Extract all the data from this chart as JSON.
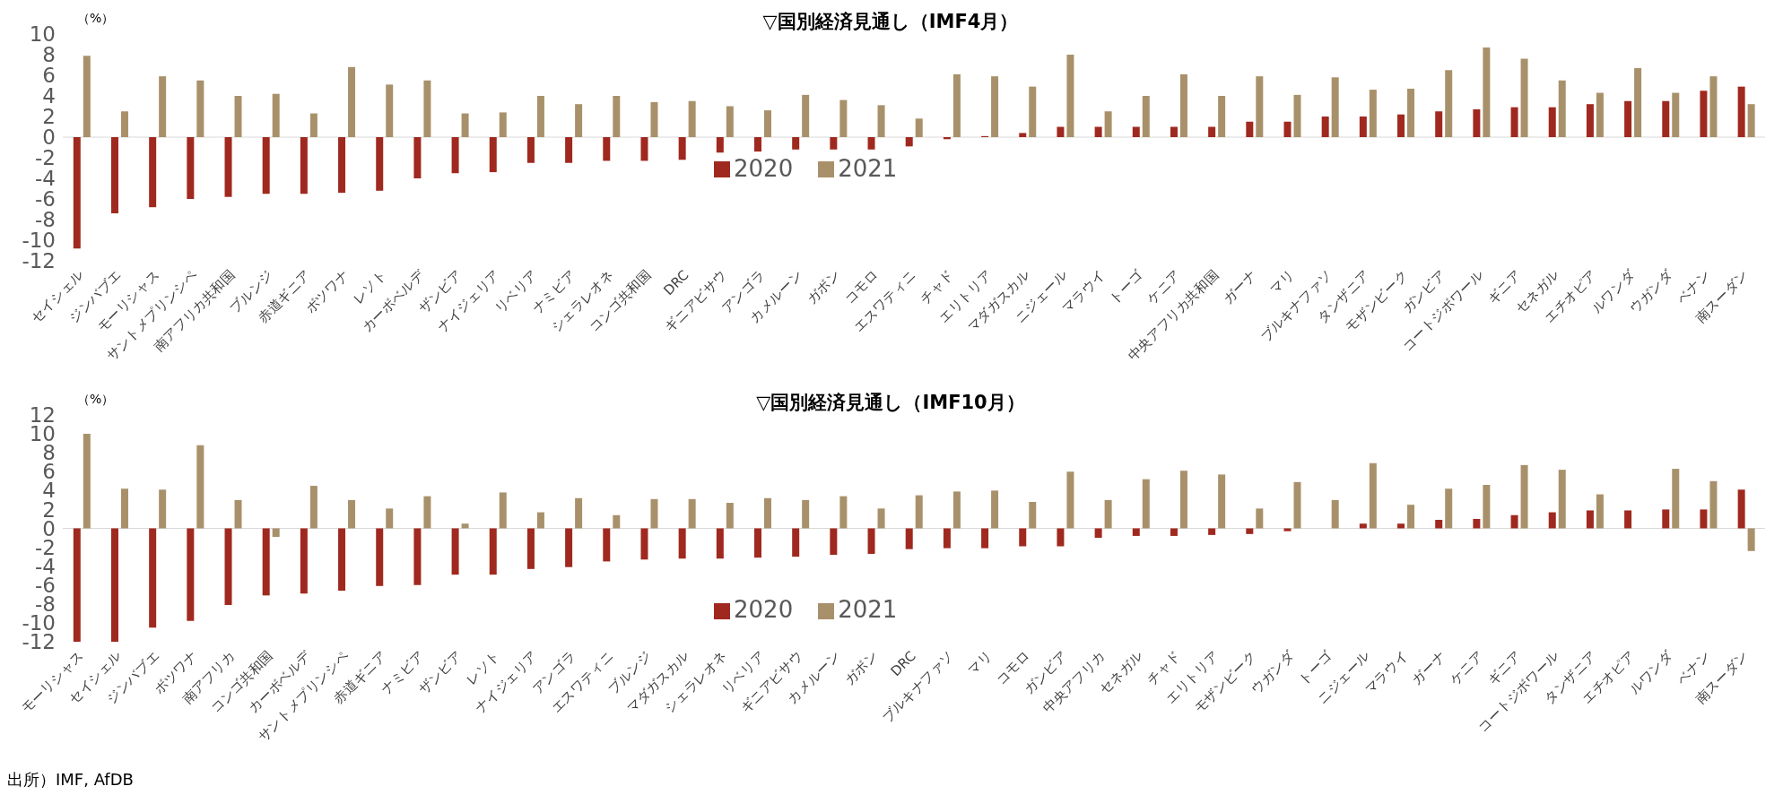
{
  "chart_data": [
    {
      "type": "bar",
      "title": "▽国別経済見通し（IMF4月）",
      "ylabel": "（%）",
      "categories": [
        "セイシェル",
        "ジンバブエ",
        "モーリシャス",
        "サントメプリンシペ",
        "南アフリカ共和国",
        "ブルンジ",
        "赤道ギニア",
        "ボツワナ",
        "レソト",
        "カーボベルデ",
        "ザンビア",
        "ナイジェリア",
        "リベリア",
        "ナミビア",
        "シェラレオネ",
        "コンゴ共和国",
        "DRC",
        "ギニアビサウ",
        "アンゴラ",
        "カメルーン",
        "ガボン",
        "コモロ",
        "エスワティニ",
        "チャド",
        "エリトリア",
        "マダガスカル",
        "ニジェール",
        "マラウイ",
        "トーゴ",
        "ケニア",
        "中央アフリカ共和国",
        "ガーナ",
        "マリ",
        "ブルキナファソ",
        "タンザニア",
        "モザンビーク",
        "ガンビア",
        "コートジボワール",
        "ギニア",
        "セネガル",
        "エチオピア",
        "ルワンダ",
        "ウガンダ",
        "ベナン",
        "南スーダン"
      ],
      "series": [
        {
          "name": "2020",
          "color": "#a0291f",
          "values": [
            -10.8,
            -7.4,
            -6.8,
            -6.0,
            -5.8,
            -5.5,
            -5.5,
            -5.4,
            -5.2,
            -4.0,
            -3.5,
            -3.4,
            -2.5,
            -2.5,
            -2.3,
            -2.3,
            -2.2,
            -1.5,
            -1.4,
            -1.2,
            -1.2,
            -1.2,
            -0.9,
            -0.2,
            0.1,
            0.4,
            1.0,
            1.0,
            1.0,
            1.0,
            1.0,
            1.5,
            1.5,
            2.0,
            2.0,
            2.2,
            2.5,
            2.7,
            2.9,
            2.9,
            3.2,
            3.5,
            3.5,
            4.5,
            4.9
          ]
        },
        {
          "name": "2021",
          "color": "#a8916a",
          "values": [
            7.9,
            2.5,
            5.9,
            5.5,
            4.0,
            4.2,
            2.3,
            6.8,
            5.1,
            5.5,
            2.3,
            2.4,
            4.0,
            3.2,
            4.0,
            3.4,
            3.5,
            3.0,
            2.6,
            4.1,
            3.6,
            3.1,
            1.8,
            6.1,
            5.9,
            4.9,
            8.0,
            2.5,
            4.0,
            6.1,
            4.0,
            5.9,
            4.1,
            5.8,
            4.6,
            4.7,
            6.5,
            8.7,
            7.6,
            5.5,
            4.3,
            6.7,
            4.3,
            5.9,
            3.2
          ]
        }
      ],
      "ylim": [
        -12,
        10
      ],
      "yticks": [
        -12,
        -10,
        -8,
        -6,
        -4,
        -2,
        0,
        2,
        4,
        6,
        8,
        10
      ],
      "ref_lines": [
        {
          "axis": "y",
          "value": 0,
          "color": "#d9d9d9"
        }
      ],
      "legend": "center"
    },
    {
      "type": "bar",
      "title": "▽国別経済見通し（IMF10月）",
      "ylabel": "（%）",
      "annotations": [
        "出所）IMF, AfDB"
      ],
      "categories": [
        "モーリシャス",
        "セイシェル",
        "ジンバブエ",
        "ボツワナ",
        "南アフリカ",
        "コンゴ共和国",
        "カーボベルデ",
        "サントメプリンシペ",
        "赤道ギニア",
        "ナミビア",
        "ザンビア",
        "レソト",
        "ナイジェリア",
        "アンゴラ",
        "エスワティニ",
        "ブルンジ",
        "マダガスカル",
        "シェラレオネ",
        "リベリア",
        "ギニアビサウ",
        "カメルーン",
        "ガボン",
        "DRC",
        "ブルキナファソ",
        "マリ",
        "コモロ",
        "ガンビア",
        "中央アフリカ",
        "セネガル",
        "チャド",
        "エリトリア",
        "モザンビーク",
        "ウガンダ",
        "トーゴ",
        "ニジェール",
        "マラウイ",
        "ガーナ",
        "ケニア",
        "ギニア",
        "コートジボワール",
        "タンザニア",
        "エチオピア",
        "ルワンダ",
        "ベナン",
        "南スーダン"
      ],
      "series": [
        {
          "name": "2020",
          "color": "#a0291f",
          "values": [
            -12.0,
            -12.0,
            -10.5,
            -9.8,
            -8.1,
            -7.1,
            -6.9,
            -6.6,
            -6.1,
            -6.0,
            -4.9,
            -4.9,
            -4.3,
            -4.1,
            -3.5,
            -3.3,
            -3.2,
            -3.2,
            -3.1,
            -3.0,
            -2.8,
            -2.7,
            -2.2,
            -2.1,
            -2.1,
            -1.9,
            -1.9,
            -1.0,
            -0.8,
            -0.8,
            -0.7,
            -0.6,
            -0.3,
            0,
            0.5,
            0.5,
            0.9,
            1.0,
            1.4,
            1.7,
            1.9,
            1.9,
            2.0,
            2.0,
            4.1
          ]
        },
        {
          "name": "2021",
          "color": "#a8916a",
          "values": [
            10.0,
            4.2,
            4.1,
            8.8,
            3.0,
            -0.9,
            4.5,
            3.0,
            2.1,
            3.4,
            0.5,
            3.8,
            1.7,
            3.2,
            1.4,
            3.1,
            3.1,
            2.7,
            3.2,
            3.0,
            3.4,
            2.1,
            3.5,
            3.9,
            4.0,
            2.8,
            6.0,
            3.0,
            5.2,
            6.1,
            5.7,
            2.1,
            4.9,
            3.0,
            6.9,
            2.5,
            4.2,
            4.6,
            6.7,
            6.2,
            3.6,
            0,
            6.3,
            5.0,
            -2.4
          ]
        }
      ],
      "ylim": [
        -12,
        12
      ],
      "yticks": [
        -12,
        -10,
        -8,
        -6,
        -4,
        -2,
        0,
        2,
        4,
        6,
        8,
        10,
        12
      ],
      "ref_lines": [
        {
          "axis": "y",
          "value": 0,
          "color": "#d9d9d9"
        }
      ],
      "legend": "bottom"
    }
  ]
}
